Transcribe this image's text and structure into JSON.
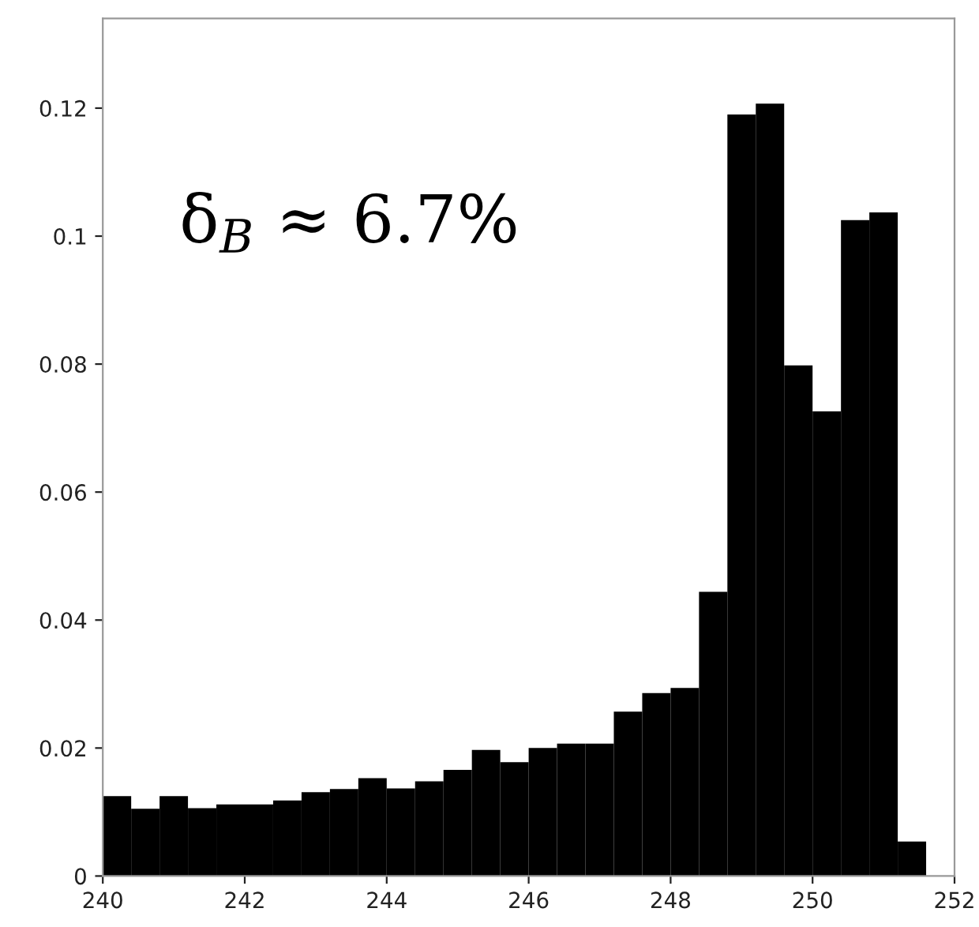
{
  "chart_data": {
    "type": "histogram",
    "bins": [
      240.0,
      240.4,
      240.8,
      241.2,
      241.6,
      242.0,
      242.4,
      242.8,
      243.2,
      243.6,
      244.0,
      244.4,
      244.8,
      245.2,
      245.6,
      246.0,
      246.4,
      246.8,
      247.2,
      247.6,
      248.0,
      248.4,
      248.8,
      249.2,
      249.6,
      250.0,
      250.4,
      250.8,
      251.2,
      251.6
    ],
    "values": [
      0.0125,
      0.0105,
      0.0125,
      0.0106,
      0.0112,
      0.0112,
      0.0118,
      0.0131,
      0.0136,
      0.0153,
      0.0137,
      0.0148,
      0.0166,
      0.0197,
      0.0178,
      0.02,
      0.0207,
      0.0207,
      0.0257,
      0.0286,
      0.0294,
      0.0444,
      0.119,
      0.1207,
      0.0798,
      0.0726,
      0.1025,
      0.1037,
      0.0054
    ],
    "color": "#000000",
    "xlim": [
      240,
      252
    ],
    "xticks": [
      240,
      242,
      244,
      246,
      248,
      250,
      252
    ],
    "ylim": [
      0,
      0.134
    ],
    "yticks": [
      0,
      0.02,
      0.04,
      0.06,
      0.08,
      0.1,
      0.12
    ],
    "annotations": [
      "δ$_{B}$ ≈ 6.7%"
    ],
    "grid": false
  }
}
